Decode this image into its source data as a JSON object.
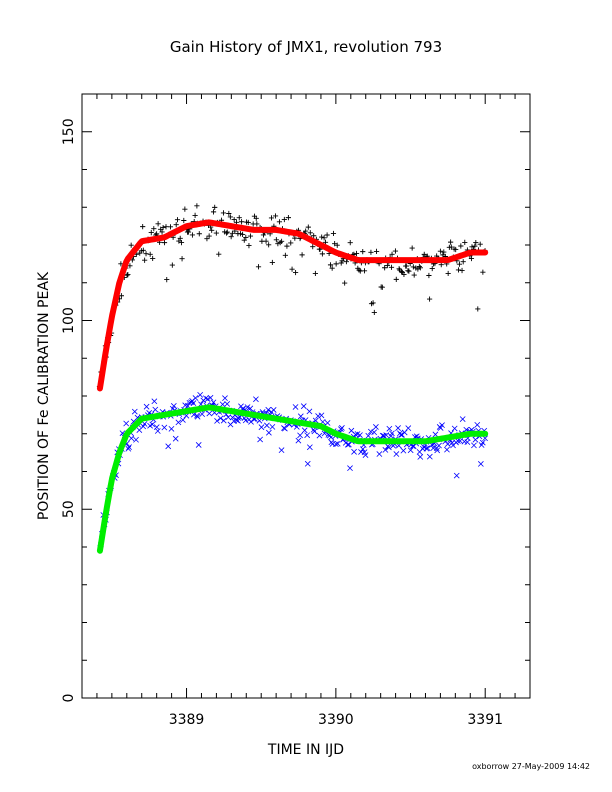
{
  "chart_data": {
    "type": "scatter",
    "title": "Gain History of JMX1, revolution 793",
    "xlabel": "TIME IN IJD",
    "ylabel": "POSITION OF Fe CALIBRATION PEAK",
    "xlim": [
      3388.3,
      3391.3
    ],
    "ylim": [
      0,
      160
    ],
    "xticks": [
      3389,
      3390,
      3391
    ],
    "yticks": [
      0,
      50,
      100,
      150
    ],
    "grid": false,
    "footer": "oxborrow 27-May-2009 14:42",
    "series": [
      {
        "marker": "plus",
        "color": "#000000",
        "x_start": 3388.42,
        "x_end": 3391.0,
        "count": 300,
        "scatter": 3.0,
        "trend_x": [
          3388.42,
          3388.5,
          3388.58,
          3388.7,
          3388.85,
          3389.0,
          3389.15,
          3389.3,
          3389.45,
          3389.6,
          3389.75,
          3389.85,
          3390.0,
          3390.15,
          3390.3,
          3390.45,
          3390.6,
          3390.75,
          3390.9,
          3391.0
        ],
        "trend_y": [
          82,
          100,
          113,
          120,
          122,
          125,
          126,
          125,
          124,
          124,
          123,
          121,
          118,
          115,
          115,
          115,
          115,
          116,
          118,
          118
        ]
      },
      {
        "marker": "cross",
        "color": "#0000ff",
        "x_start": 3388.42,
        "x_end": 3391.0,
        "count": 340,
        "scatter": 2.5,
        "trend_x": [
          3388.42,
          3388.5,
          3388.58,
          3388.7,
          3388.85,
          3389.0,
          3389.15,
          3389.3,
          3389.45,
          3389.6,
          3389.75,
          3389.9,
          3390.0,
          3390.15,
          3390.3,
          3390.45,
          3390.6,
          3390.75,
          3390.9,
          3391.0
        ],
        "trend_y": [
          39,
          58,
          69,
          74,
          75,
          76,
          77,
          76,
          75,
          74,
          73,
          72,
          70,
          68,
          68,
          68,
          68,
          69,
          70,
          70
        ]
      },
      {
        "marker": "line",
        "color": "#ff0000",
        "x": [
          3388.42,
          3388.46,
          3388.5,
          3388.55,
          3388.6,
          3388.7,
          3388.85,
          3389.0,
          3389.15,
          3389.3,
          3389.45,
          3389.6,
          3389.75,
          3389.85,
          3390.0,
          3390.15,
          3390.3,
          3390.45,
          3390.6,
          3390.75,
          3390.9,
          3391.0
        ],
        "y": [
          82,
          92,
          101,
          110,
          116,
          121,
          122,
          125,
          126,
          125,
          124,
          124,
          123,
          121,
          118,
          116,
          116,
          116,
          116,
          116,
          118,
          118
        ]
      },
      {
        "marker": "line",
        "color": "#00ee00",
        "x": [
          3388.42,
          3388.46,
          3388.5,
          3388.55,
          3388.6,
          3388.7,
          3388.85,
          3389.0,
          3389.15,
          3389.3,
          3389.45,
          3389.6,
          3389.75,
          3389.9,
          3390.0,
          3390.15,
          3390.3,
          3390.45,
          3390.6,
          3390.75,
          3390.9,
          3391.0
        ],
        "y": [
          39,
          49,
          58,
          65,
          70,
          74,
          75,
          76,
          77,
          76,
          75,
          74,
          73,
          72,
          70,
          68,
          68,
          68,
          68,
          69,
          70,
          70
        ]
      }
    ]
  }
}
